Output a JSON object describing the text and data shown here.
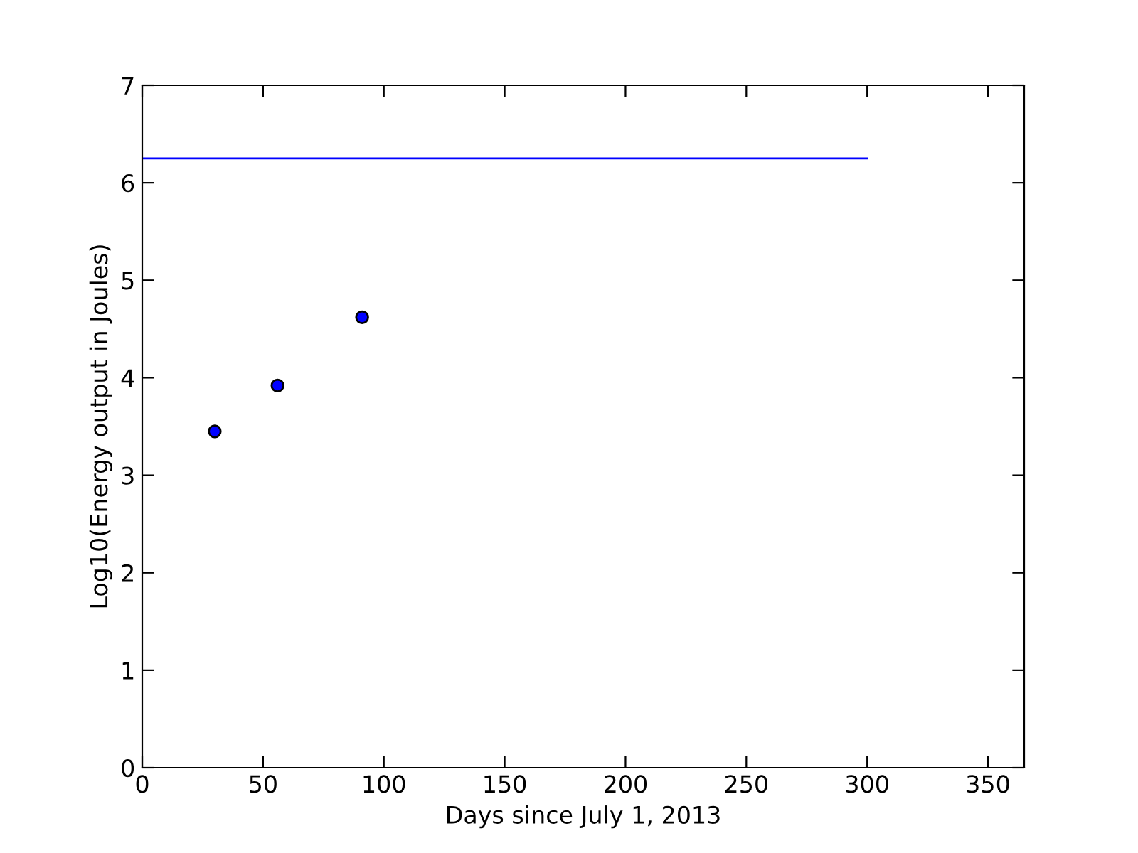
{
  "chart_data": {
    "type": "scatter",
    "xlabel": "Days since July 1, 2013",
    "ylabel": "Log10(Energy output in Joules)",
    "series": [
      {
        "type": "line",
        "marker": "none",
        "color": "#0000ff",
        "x": [
          0,
          300
        ],
        "values": [
          6.25,
          6.25
        ]
      },
      {
        "marker": "circle",
        "color": "#0000ff",
        "x": [
          30,
          56,
          91
        ],
        "values": [
          3.45,
          3.92,
          4.62
        ]
      }
    ],
    "xlim": [
      0,
      365
    ],
    "xticks": [
      0,
      50,
      100,
      150,
      200,
      250,
      300,
      350
    ],
    "ylim": [
      0,
      7
    ],
    "yticks": [
      0,
      1,
      2,
      3,
      4,
      5,
      6,
      7
    ],
    "grid": false
  }
}
